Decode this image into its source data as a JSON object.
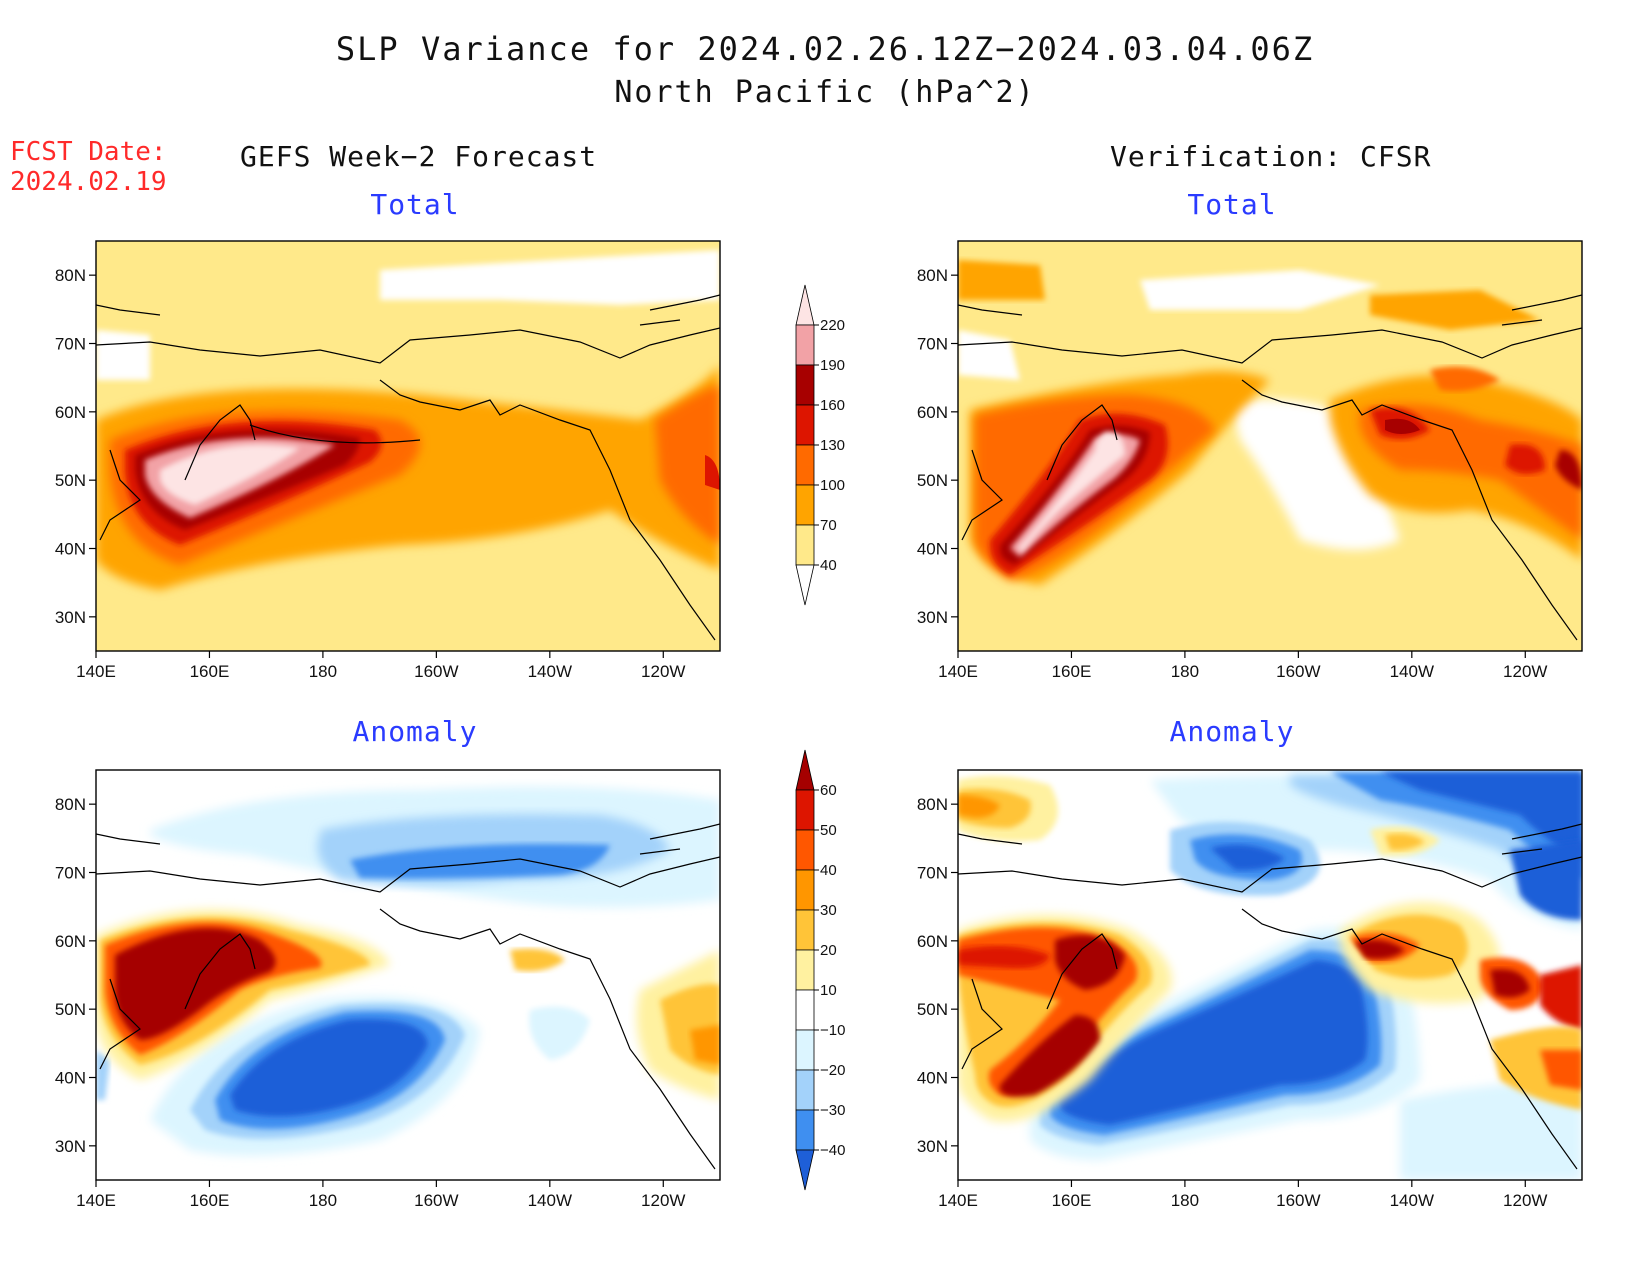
{
  "title": {
    "line1": "SLP Variance for 2024.02.26.12Z−2024.03.04.06Z",
    "line2": "North Pacific (hPa^2)"
  },
  "forecast": {
    "label": "FCST Date:",
    "date": "2024.02.19"
  },
  "columns": {
    "left": "GEFS Week−2 Forecast",
    "right": "Verification: CFSR"
  },
  "panel_titles": {
    "total": "Total",
    "anomaly": "Anomaly"
  },
  "axes": {
    "lon_ticks": [
      "140E",
      "160E",
      "180",
      "160W",
      "140W",
      "120W"
    ],
    "lat_ticks": [
      "80N",
      "70N",
      "60N",
      "50N",
      "40N",
      "30N"
    ],
    "lon_range": [
      140,
      250
    ],
    "lat_range": [
      25,
      85
    ]
  },
  "colorbars": {
    "total": {
      "levels": [
        "40",
        "70",
        "100",
        "130",
        "160",
        "190",
        "220"
      ],
      "colors": [
        "#ffffff",
        "#ffe98a",
        "#ffa400",
        "#ff6a00",
        "#dd1500",
        "#a70000",
        "#f2a2a6",
        "#fde4e4"
      ]
    },
    "anomaly": {
      "levels": [
        "−40",
        "−30",
        "−20",
        "−10",
        "10",
        "20",
        "30",
        "40",
        "50",
        "60"
      ],
      "colors": [
        "#1e5fd8",
        "#3f8ff0",
        "#a3d2fa",
        "#dcf5ff",
        "#ffffff",
        "#fff1a0",
        "#ffc438",
        "#ff9600",
        "#ff5700",
        "#dd1500",
        "#a50000"
      ]
    }
  },
  "colors": {
    "title_red": "#ff2a2a",
    "subtitle_blue": "#2a3bff"
  }
}
